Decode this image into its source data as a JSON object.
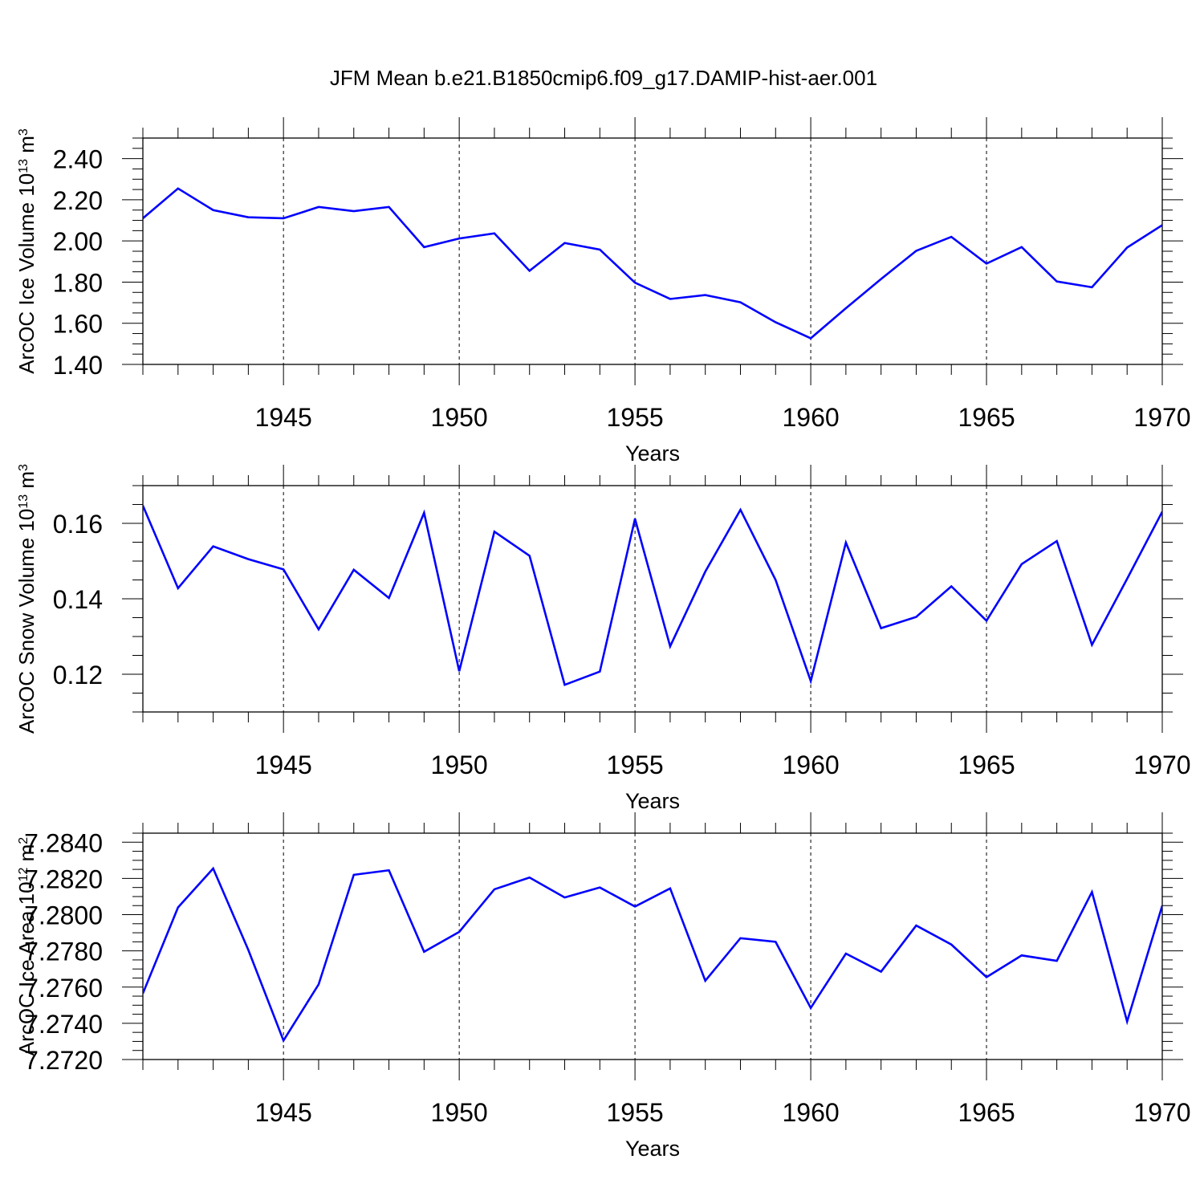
{
  "title": "JFM Mean b.e21.B1850cmip6.f09_g17.DAMIP-hist-aer.001",
  "colors": {
    "line": "#0000ff",
    "axis": "#000000",
    "grid": "#000000",
    "background": "#ffffff"
  },
  "chart_data": [
    {
      "type": "line",
      "title": "JFM Mean b.e21.B1850cmip6.f09_g17.DAMIP-hist-aer.001",
      "ylabel": "ArcOC Ice Volume 10",
      "ylabel_exp": "13",
      "ylabel_unit": " m",
      "ylabel_unit_exp": "3",
      "xlabel": "Years",
      "xlim": [
        1941,
        1970
      ],
      "ylim": [
        1.4,
        2.5
      ],
      "yticks": [
        1.4,
        1.6,
        1.8,
        2.0,
        2.2,
        2.4
      ],
      "ytick_labels": [
        "1.40",
        "1.60",
        "1.80",
        "2.00",
        "2.20",
        "2.40"
      ],
      "y_minor_step": 0.05,
      "xticks": [
        1945,
        1950,
        1955,
        1960,
        1965,
        1970
      ],
      "xtick_labels": [
        "1945",
        "1950",
        "1955",
        "1960",
        "1965",
        "1970"
      ],
      "x": [
        1941,
        1942,
        1943,
        1944,
        1945,
        1946,
        1947,
        1948,
        1949,
        1950,
        1951,
        1952,
        1953,
        1954,
        1955,
        1956,
        1957,
        1958,
        1959,
        1960,
        1961,
        1962,
        1963,
        1964,
        1965,
        1966,
        1967,
        1968,
        1969,
        1970
      ],
      "series": [
        {
          "name": "ArcOC Ice Volume",
          "values": [
            2.11,
            2.255,
            2.15,
            2.115,
            2.11,
            2.165,
            2.145,
            2.165,
            1.97,
            2.012,
            2.037,
            1.855,
            1.99,
            1.958,
            1.797,
            1.718,
            1.737,
            1.702,
            1.605,
            1.527,
            1.673,
            1.815,
            1.952,
            2.02,
            1.89,
            1.97,
            1.803,
            1.775,
            1.968,
            2.077
          ]
        }
      ]
    },
    {
      "type": "line",
      "ylabel": "ArcOC Snow Volume 10",
      "ylabel_exp": "13",
      "ylabel_unit": " m",
      "ylabel_unit_exp": "3",
      "xlabel": "Years",
      "xlim": [
        1941,
        1970
      ],
      "ylim": [
        0.11,
        0.17
      ],
      "yticks": [
        0.12,
        0.14,
        0.16
      ],
      "ytick_labels": [
        "0.12",
        "0.14",
        "0.16"
      ],
      "y_minor_step": 0.005,
      "xticks": [
        1945,
        1950,
        1955,
        1960,
        1965,
        1970
      ],
      "xtick_labels": [
        "1945",
        "1950",
        "1955",
        "1960",
        "1965",
        "1970"
      ],
      "x": [
        1941,
        1942,
        1943,
        1944,
        1945,
        1946,
        1947,
        1948,
        1949,
        1950,
        1951,
        1952,
        1953,
        1954,
        1955,
        1956,
        1957,
        1958,
        1959,
        1960,
        1961,
        1962,
        1963,
        1964,
        1965,
        1966,
        1967,
        1968,
        1969,
        1970
      ],
      "series": [
        {
          "name": "ArcOC Snow Volume",
          "values": [
            0.1647,
            0.1428,
            0.1539,
            0.1505,
            0.1478,
            0.1319,
            0.1477,
            0.1402,
            0.1628,
            0.1208,
            0.1578,
            0.1514,
            0.1172,
            0.1207,
            0.1612,
            0.1274,
            0.1472,
            0.1636,
            0.145,
            0.1182,
            0.1549,
            0.1322,
            0.1352,
            0.1433,
            0.1342,
            0.1492,
            0.1553,
            0.1278,
            0.1453,
            0.1631
          ]
        }
      ]
    },
    {
      "type": "line",
      "ylabel": "ArcOC Ice Area 10",
      "ylabel_exp": "12",
      "ylabel_unit": " m",
      "ylabel_unit_exp": "2",
      "xlabel": "Years",
      "xlim": [
        1941,
        1970
      ],
      "ylim": [
        7.272,
        7.2845
      ],
      "yticks": [
        7.272,
        7.274,
        7.276,
        7.278,
        7.28,
        7.282,
        7.284
      ],
      "ytick_labels": [
        "7.2720",
        "7.2740",
        "7.2760",
        "7.2780",
        "7.2800",
        "7.2820",
        "7.2840"
      ],
      "y_minor_step": 0.0005,
      "xticks": [
        1945,
        1950,
        1955,
        1960,
        1965,
        1970
      ],
      "xtick_labels": [
        "1945",
        "1950",
        "1955",
        "1960",
        "1965",
        "1970"
      ],
      "x": [
        1941,
        1942,
        1943,
        1944,
        1945,
        1946,
        1947,
        1948,
        1949,
        1950,
        1951,
        1952,
        1953,
        1954,
        1955,
        1956,
        1957,
        1958,
        1959,
        1960,
        1961,
        1962,
        1963,
        1964,
        1965,
        1966,
        1967,
        1968,
        1969,
        1970
      ],
      "series": [
        {
          "name": "ArcOC Ice Area",
          "values": [
            7.27565,
            7.2804,
            7.28255,
            7.27805,
            7.27305,
            7.27615,
            7.2822,
            7.28245,
            7.27795,
            7.27905,
            7.2814,
            7.28205,
            7.28095,
            7.2815,
            7.28045,
            7.28145,
            7.27635,
            7.2787,
            7.2785,
            7.27485,
            7.27785,
            7.27685,
            7.2794,
            7.27835,
            7.27655,
            7.27775,
            7.27745,
            7.28125,
            7.2741,
            7.2805
          ]
        }
      ]
    }
  ]
}
